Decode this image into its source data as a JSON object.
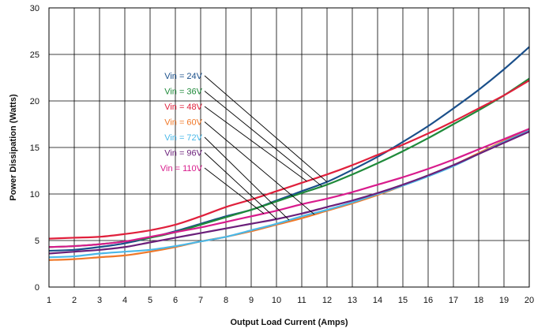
{
  "chart_data": {
    "type": "line",
    "title": "",
    "xlabel": "Output Load Current (Amps)",
    "ylabel": "Power Dissipation (Watts)",
    "xlim": [
      1,
      20
    ],
    "ylim": [
      0,
      30
    ],
    "xticks": [
      1,
      2,
      3,
      4,
      5,
      6,
      7,
      8,
      9,
      10,
      11,
      12,
      13,
      14,
      15,
      16,
      17,
      18,
      19,
      20
    ],
    "yticks": [
      0,
      5,
      10,
      15,
      20,
      25,
      30
    ],
    "grid": true,
    "legend_placement": "inline labels with leader lines",
    "x": [
      1,
      2,
      3,
      4,
      5,
      6,
      7,
      8,
      9,
      10,
      11,
      12,
      13,
      14,
      15,
      16,
      17,
      18,
      19,
      20
    ],
    "series": [
      {
        "name": "Vin = 24V",
        "color": "#1a4f8a",
        "label_anchor_x": 12.0,
        "values": [
          3.9,
          4.0,
          4.3,
          4.7,
          5.3,
          6.0,
          6.8,
          7.6,
          8.3,
          9.3,
          10.3,
          11.3,
          12.6,
          14.0,
          15.6,
          17.3,
          19.2,
          21.2,
          23.4,
          25.8
        ]
      },
      {
        "name": "Vin = 36V",
        "color": "#1f8a3a",
        "label_anchor_x": 11.8,
        "values": [
          4.3,
          4.4,
          4.6,
          4.9,
          5.3,
          5.9,
          6.7,
          7.5,
          8.3,
          9.2,
          10.1,
          11.0,
          12.1,
          13.3,
          14.6,
          16.0,
          17.5,
          19.0,
          20.6,
          22.4
        ]
      },
      {
        "name": "Vin = 48V",
        "color": "#e0203c",
        "label_anchor_x": 11.2,
        "values": [
          5.2,
          5.3,
          5.4,
          5.7,
          6.1,
          6.7,
          7.6,
          8.6,
          9.4,
          10.3,
          11.2,
          12.1,
          13.1,
          14.2,
          15.3,
          16.5,
          17.8,
          19.2,
          20.6,
          22.2
        ]
      },
      {
        "name": "Vin = 60V",
        "color": "#f07828",
        "label_anchor_x": 11.5,
        "values": [
          2.9,
          3.0,
          3.2,
          3.4,
          3.8,
          4.3,
          4.9,
          5.4,
          6.0,
          6.7,
          7.4,
          8.2,
          9.0,
          9.9,
          10.9,
          12.0,
          13.1,
          14.4,
          15.7,
          17.0
        ]
      },
      {
        "name": "Vin = 72V",
        "color": "#4ab8e8",
        "label_anchor_x": 10.5,
        "values": [
          3.2,
          3.3,
          3.6,
          3.8,
          4.0,
          4.4,
          4.9,
          5.4,
          6.1,
          6.8,
          7.6,
          8.3,
          9.1,
          10.0,
          10.9,
          11.9,
          13.0,
          14.3,
          15.6,
          16.8
        ]
      },
      {
        "name": "Vin = 96V",
        "color": "#6a1f7a",
        "label_anchor_x": 10.0,
        "values": [
          3.6,
          3.8,
          4.0,
          4.3,
          4.8,
          5.3,
          5.8,
          6.3,
          6.8,
          7.3,
          7.9,
          8.6,
          9.3,
          10.1,
          11.0,
          12.0,
          13.1,
          14.3,
          15.5,
          16.7
        ]
      },
      {
        "name": "Vin = 110V",
        "color": "#d81b8c",
        "label_anchor_x": 9.5,
        "values": [
          4.3,
          4.4,
          4.6,
          4.9,
          5.4,
          5.9,
          6.4,
          7.0,
          7.6,
          8.2,
          8.9,
          9.5,
          10.2,
          11.0,
          11.8,
          12.7,
          13.7,
          14.8,
          15.9,
          17.0
        ]
      }
    ]
  }
}
